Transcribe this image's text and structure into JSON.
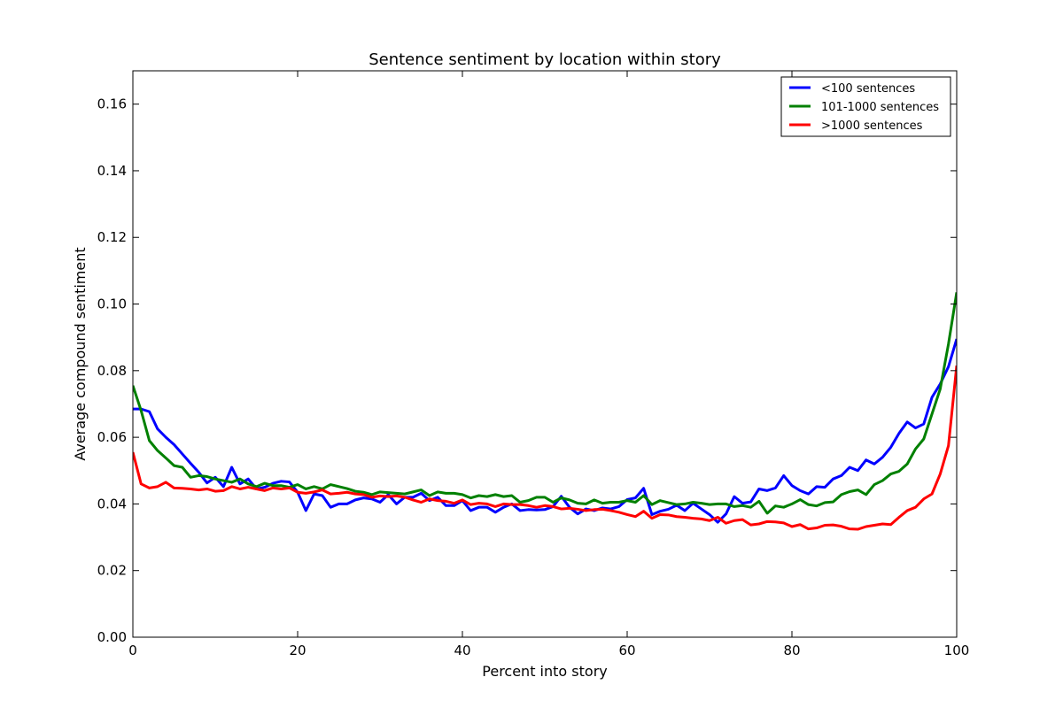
{
  "chart_data": {
    "type": "line",
    "title": "Sentence sentiment by location within story",
    "xlabel": "Percent into story",
    "ylabel": "Average compound sentiment",
    "xlim": [
      0,
      100
    ],
    "ylim": [
      0,
      0.17
    ],
    "xticks": [
      0,
      20,
      40,
      60,
      80,
      100
    ],
    "xtick_labels": [
      "0",
      "20",
      "40",
      "60",
      "80",
      "100"
    ],
    "yticks": [
      0,
      0.02,
      0.04,
      0.06,
      0.08,
      0.1,
      0.12,
      0.14,
      0.16
    ],
    "ytick_labels": [
      "0.00",
      "0.02",
      "0.04",
      "0.06",
      "0.08",
      "0.10",
      "0.12",
      "0.14",
      "0.16"
    ],
    "grid": false,
    "legend": "top-right",
    "x": [
      0,
      1,
      2,
      3,
      4,
      5,
      6,
      7,
      8,
      9,
      10,
      11,
      12,
      13,
      14,
      15,
      16,
      17,
      18,
      19,
      20,
      21,
      22,
      23,
      24,
      25,
      26,
      27,
      28,
      29,
      30,
      31,
      32,
      33,
      34,
      35,
      36,
      37,
      38,
      39,
      40,
      41,
      42,
      43,
      44,
      45,
      46,
      47,
      48,
      49,
      50,
      51,
      52,
      53,
      54,
      55,
      56,
      57,
      58,
      59,
      60,
      61,
      62,
      63,
      64,
      65,
      66,
      67,
      68,
      69,
      70,
      71,
      72,
      73,
      74,
      75,
      76,
      77,
      78,
      79,
      80,
      81,
      82,
      83,
      84,
      85,
      86,
      87,
      88,
      89,
      90,
      91,
      92,
      93,
      94,
      95,
      96,
      97,
      98,
      99,
      100
    ],
    "series": [
      {
        "name": "<100 sentences",
        "color": "#0000ff",
        "values": [
          0.0685,
          0.0685,
          0.0677,
          0.0625,
          0.06,
          0.0578,
          0.055,
          0.0522,
          0.0495,
          0.0463,
          0.048,
          0.0452,
          0.051,
          0.046,
          0.0475,
          0.0445,
          0.045,
          0.0462,
          0.0468,
          0.0466,
          0.0435,
          0.038,
          0.043,
          0.0425,
          0.039,
          0.04,
          0.04,
          0.0412,
          0.0418,
          0.0415,
          0.0405,
          0.0428,
          0.04,
          0.042,
          0.042,
          0.0432,
          0.041,
          0.042,
          0.0395,
          0.0395,
          0.041,
          0.038,
          0.039,
          0.039,
          0.0375,
          0.039,
          0.04,
          0.038,
          0.0383,
          0.0382,
          0.0383,
          0.0392,
          0.0423,
          0.039,
          0.037,
          0.0385,
          0.038,
          0.0388,
          0.0385,
          0.0392,
          0.0413,
          0.0418,
          0.0447,
          0.0368,
          0.0378,
          0.0384,
          0.0396,
          0.038,
          0.0402,
          0.0385,
          0.0368,
          0.0345,
          0.037,
          0.0422,
          0.0402,
          0.0406,
          0.0445,
          0.044,
          0.0448,
          0.0485,
          0.0455,
          0.044,
          0.043,
          0.0452,
          0.045,
          0.0475,
          0.0485,
          0.051,
          0.05,
          0.0532,
          0.052,
          0.054,
          0.057,
          0.0612,
          0.0646,
          0.0628,
          0.064,
          0.072,
          0.076,
          0.0812,
          0.0895
        ]
      },
      {
        "name": "101-1000 sentences",
        "color": "#008000",
        "values": [
          0.0755,
          0.068,
          0.059,
          0.056,
          0.0538,
          0.0515,
          0.051,
          0.048,
          0.0485,
          0.0482,
          0.0475,
          0.047,
          0.0465,
          0.0475,
          0.046,
          0.0452,
          0.0462,
          0.0455,
          0.0455,
          0.045,
          0.0458,
          0.0445,
          0.0452,
          0.0445,
          0.0458,
          0.0452,
          0.0446,
          0.0438,
          0.0435,
          0.0428,
          0.0436,
          0.0434,
          0.0432,
          0.043,
          0.0436,
          0.0442,
          0.0425,
          0.0436,
          0.0432,
          0.0432,
          0.0428,
          0.0418,
          0.0425,
          0.0422,
          0.0428,
          0.0422,
          0.0425,
          0.0405,
          0.041,
          0.042,
          0.042,
          0.0405,
          0.0418,
          0.0412,
          0.0402,
          0.04,
          0.0412,
          0.0402,
          0.0405,
          0.0405,
          0.041,
          0.0405,
          0.0425,
          0.0398,
          0.041,
          0.0404,
          0.0398,
          0.04,
          0.0405,
          0.0402,
          0.0398,
          0.04,
          0.04,
          0.0392,
          0.0395,
          0.039,
          0.0408,
          0.0372,
          0.0394,
          0.039,
          0.04,
          0.0413,
          0.0398,
          0.0394,
          0.0404,
          0.0406,
          0.0428,
          0.0437,
          0.0442,
          0.0428,
          0.0458,
          0.047,
          0.049,
          0.0498,
          0.052,
          0.0565,
          0.0595,
          0.067,
          0.0745,
          0.088,
          0.1035
        ]
      },
      {
        "name": ">1000 sentences",
        "color": "#ff0000",
        "values": [
          0.0555,
          0.046,
          0.0448,
          0.0452,
          0.0465,
          0.0448,
          0.0447,
          0.0445,
          0.0442,
          0.0445,
          0.0438,
          0.044,
          0.0452,
          0.0445,
          0.045,
          0.0445,
          0.044,
          0.0448,
          0.0445,
          0.0448,
          0.0435,
          0.0432,
          0.0436,
          0.0442,
          0.043,
          0.0432,
          0.0435,
          0.043,
          0.0428,
          0.042,
          0.0424,
          0.0422,
          0.0424,
          0.042,
          0.0412,
          0.0405,
          0.0415,
          0.041,
          0.0408,
          0.0402,
          0.0412,
          0.0398,
          0.0402,
          0.04,
          0.0392,
          0.04,
          0.0398,
          0.0398,
          0.0395,
          0.039,
          0.0395,
          0.0392,
          0.0385,
          0.0387,
          0.0384,
          0.038,
          0.0383,
          0.0384,
          0.038,
          0.0375,
          0.0368,
          0.0362,
          0.0378,
          0.0357,
          0.0368,
          0.0367,
          0.0362,
          0.036,
          0.0357,
          0.0355,
          0.035,
          0.036,
          0.0342,
          0.035,
          0.0353,
          0.0337,
          0.034,
          0.0347,
          0.0346,
          0.0343,
          0.0332,
          0.0338,
          0.0325,
          0.0328,
          0.0336,
          0.0337,
          0.0333,
          0.0325,
          0.0324,
          0.0332,
          0.0336,
          0.034,
          0.0338,
          0.036,
          0.038,
          0.039,
          0.0415,
          0.043,
          0.049,
          0.0575,
          0.0815
        ]
      }
    ]
  }
}
